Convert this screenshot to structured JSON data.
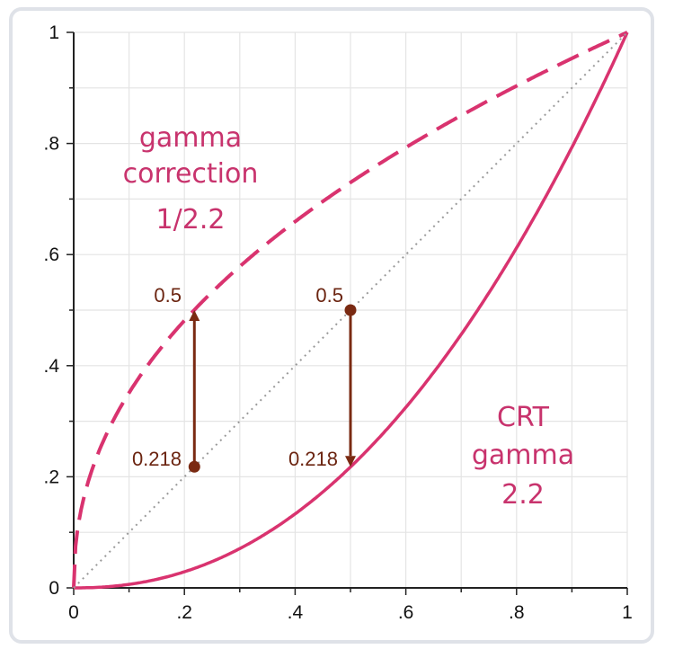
{
  "chart_data": {
    "type": "line",
    "xlim": [
      0,
      1
    ],
    "ylim": [
      0,
      1
    ],
    "x_tick_labels": [
      "0",
      ".2",
      ".4",
      ".6",
      ".8",
      "1"
    ],
    "y_tick_labels": [
      "0",
      ".2",
      ".4",
      ".6",
      ".8",
      "1"
    ],
    "x_ticks": [
      0,
      0.2,
      0.4,
      0.6,
      0.8,
      1.0
    ],
    "y_ticks": [
      0,
      0.2,
      0.4,
      0.6,
      0.8,
      1.0
    ],
    "grid": true,
    "series": [
      {
        "key": "correction",
        "style": "dashed",
        "color": "#d9336f",
        "exponent": 0.4545,
        "x": [
          0,
          0.01,
          0.02,
          0.05,
          0.1,
          0.15,
          0.2,
          0.218,
          0.3,
          0.4,
          0.5,
          0.6,
          0.7,
          0.8,
          0.9,
          1.0
        ],
        "y": [
          0,
          0.123,
          0.169,
          0.256,
          0.351,
          0.422,
          0.481,
          0.5,
          0.578,
          0.659,
          0.73,
          0.793,
          0.85,
          0.903,
          0.953,
          1.0
        ]
      },
      {
        "key": "crt",
        "style": "solid",
        "color": "#d9336f",
        "exponent": 2.2,
        "x": [
          0,
          0.05,
          0.1,
          0.15,
          0.2,
          0.25,
          0.3,
          0.35,
          0.4,
          0.45,
          0.5,
          0.55,
          0.6,
          0.65,
          0.7,
          0.75,
          0.8,
          0.85,
          0.9,
          0.95,
          1.0
        ],
        "y": [
          0,
          0.001,
          0.006,
          0.015,
          0.029,
          0.047,
          0.071,
          0.099,
          0.133,
          0.173,
          0.218,
          0.268,
          0.325,
          0.388,
          0.456,
          0.531,
          0.612,
          0.699,
          0.793,
          0.893,
          1.0
        ]
      },
      {
        "key": "linear",
        "style": "dotted",
        "color": "#9a9a9a",
        "x": [
          0,
          1
        ],
        "y": [
          0,
          1
        ]
      }
    ],
    "points": [
      {
        "x": 0.218,
        "y": 0.218,
        "label": "0.218",
        "label_side": "left"
      },
      {
        "x": 0.5,
        "y": 0.5,
        "label": "0.5",
        "label_side": "left"
      }
    ],
    "arrows": [
      {
        "x": 0.218,
        "from": 0.218,
        "to": 0.5,
        "label_top": "0.5"
      },
      {
        "x": 0.5,
        "from": 0.5,
        "to": 0.218,
        "label_bottom": "0.218"
      }
    ],
    "annotations": {
      "correction": [
        "gamma",
        "correction",
        "1/2.2"
      ],
      "crt": [
        "CRT",
        "gamma",
        "2.2"
      ]
    },
    "colors": {
      "curve": "#d9336f",
      "annotation": "#c8336d",
      "marker": "#7a2a12",
      "grid": "#e4e4e4",
      "axis": "#222222"
    }
  }
}
